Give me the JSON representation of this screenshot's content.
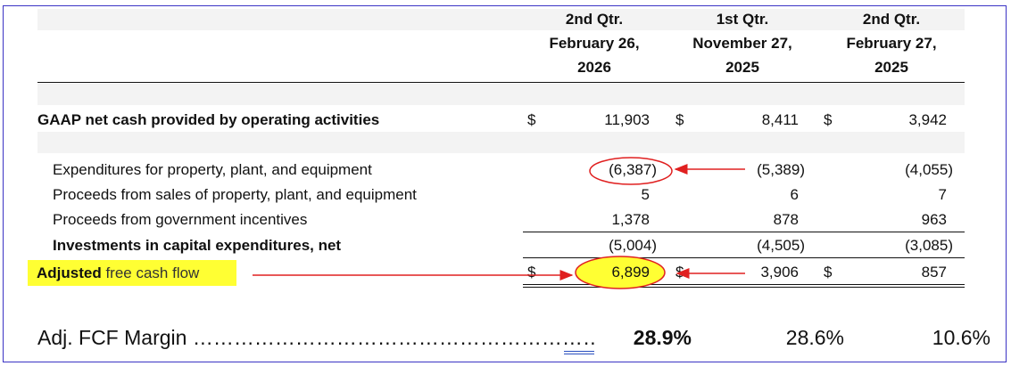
{
  "columns": [
    {
      "line1": "2nd Qtr.",
      "line2": "February 26,",
      "line3": "2026"
    },
    {
      "line1": "1st Qtr.",
      "line2": "November 27,",
      "line3": "2025"
    },
    {
      "line1": "2nd Qtr.",
      "line2": "February 27,",
      "line3": "2025"
    }
  ],
  "currency_symbol": "$",
  "rows": {
    "gaap": {
      "label": "GAAP net cash provided by operating activities",
      "values": [
        "11,903",
        "8,411",
        "3,942"
      ]
    },
    "capex": {
      "label": "Expenditures for property, plant, and equipment",
      "values": [
        "(6,387)",
        "(5,389)",
        "(4,055)"
      ]
    },
    "proceeds_sales": {
      "label": "Proceeds from sales of property, plant, and equipment",
      "values": [
        "5",
        "6",
        "7"
      ]
    },
    "proceeds_gov": {
      "label": "Proceeds from government incentives",
      "values": [
        "1,378",
        "878",
        "963"
      ]
    },
    "investments": {
      "label": "Investments in capital expenditures, net",
      "values": [
        "(5,004)",
        "(4,505)",
        "(3,085)"
      ]
    },
    "fcf": {
      "label_part1": "Adjusted ",
      "label_part2": "free cash flow",
      "values": [
        "6,899",
        "3,906",
        "857"
      ]
    }
  },
  "margin": {
    "label": "Adj. FCF Margin ……………………………………………………..",
    "values": [
      "28.9%",
      "28.6%",
      "10.6%"
    ]
  },
  "annotation_colors": {
    "highlight": "#ffff33",
    "arrow": "#e02020",
    "frame": "#3a33c4"
  }
}
